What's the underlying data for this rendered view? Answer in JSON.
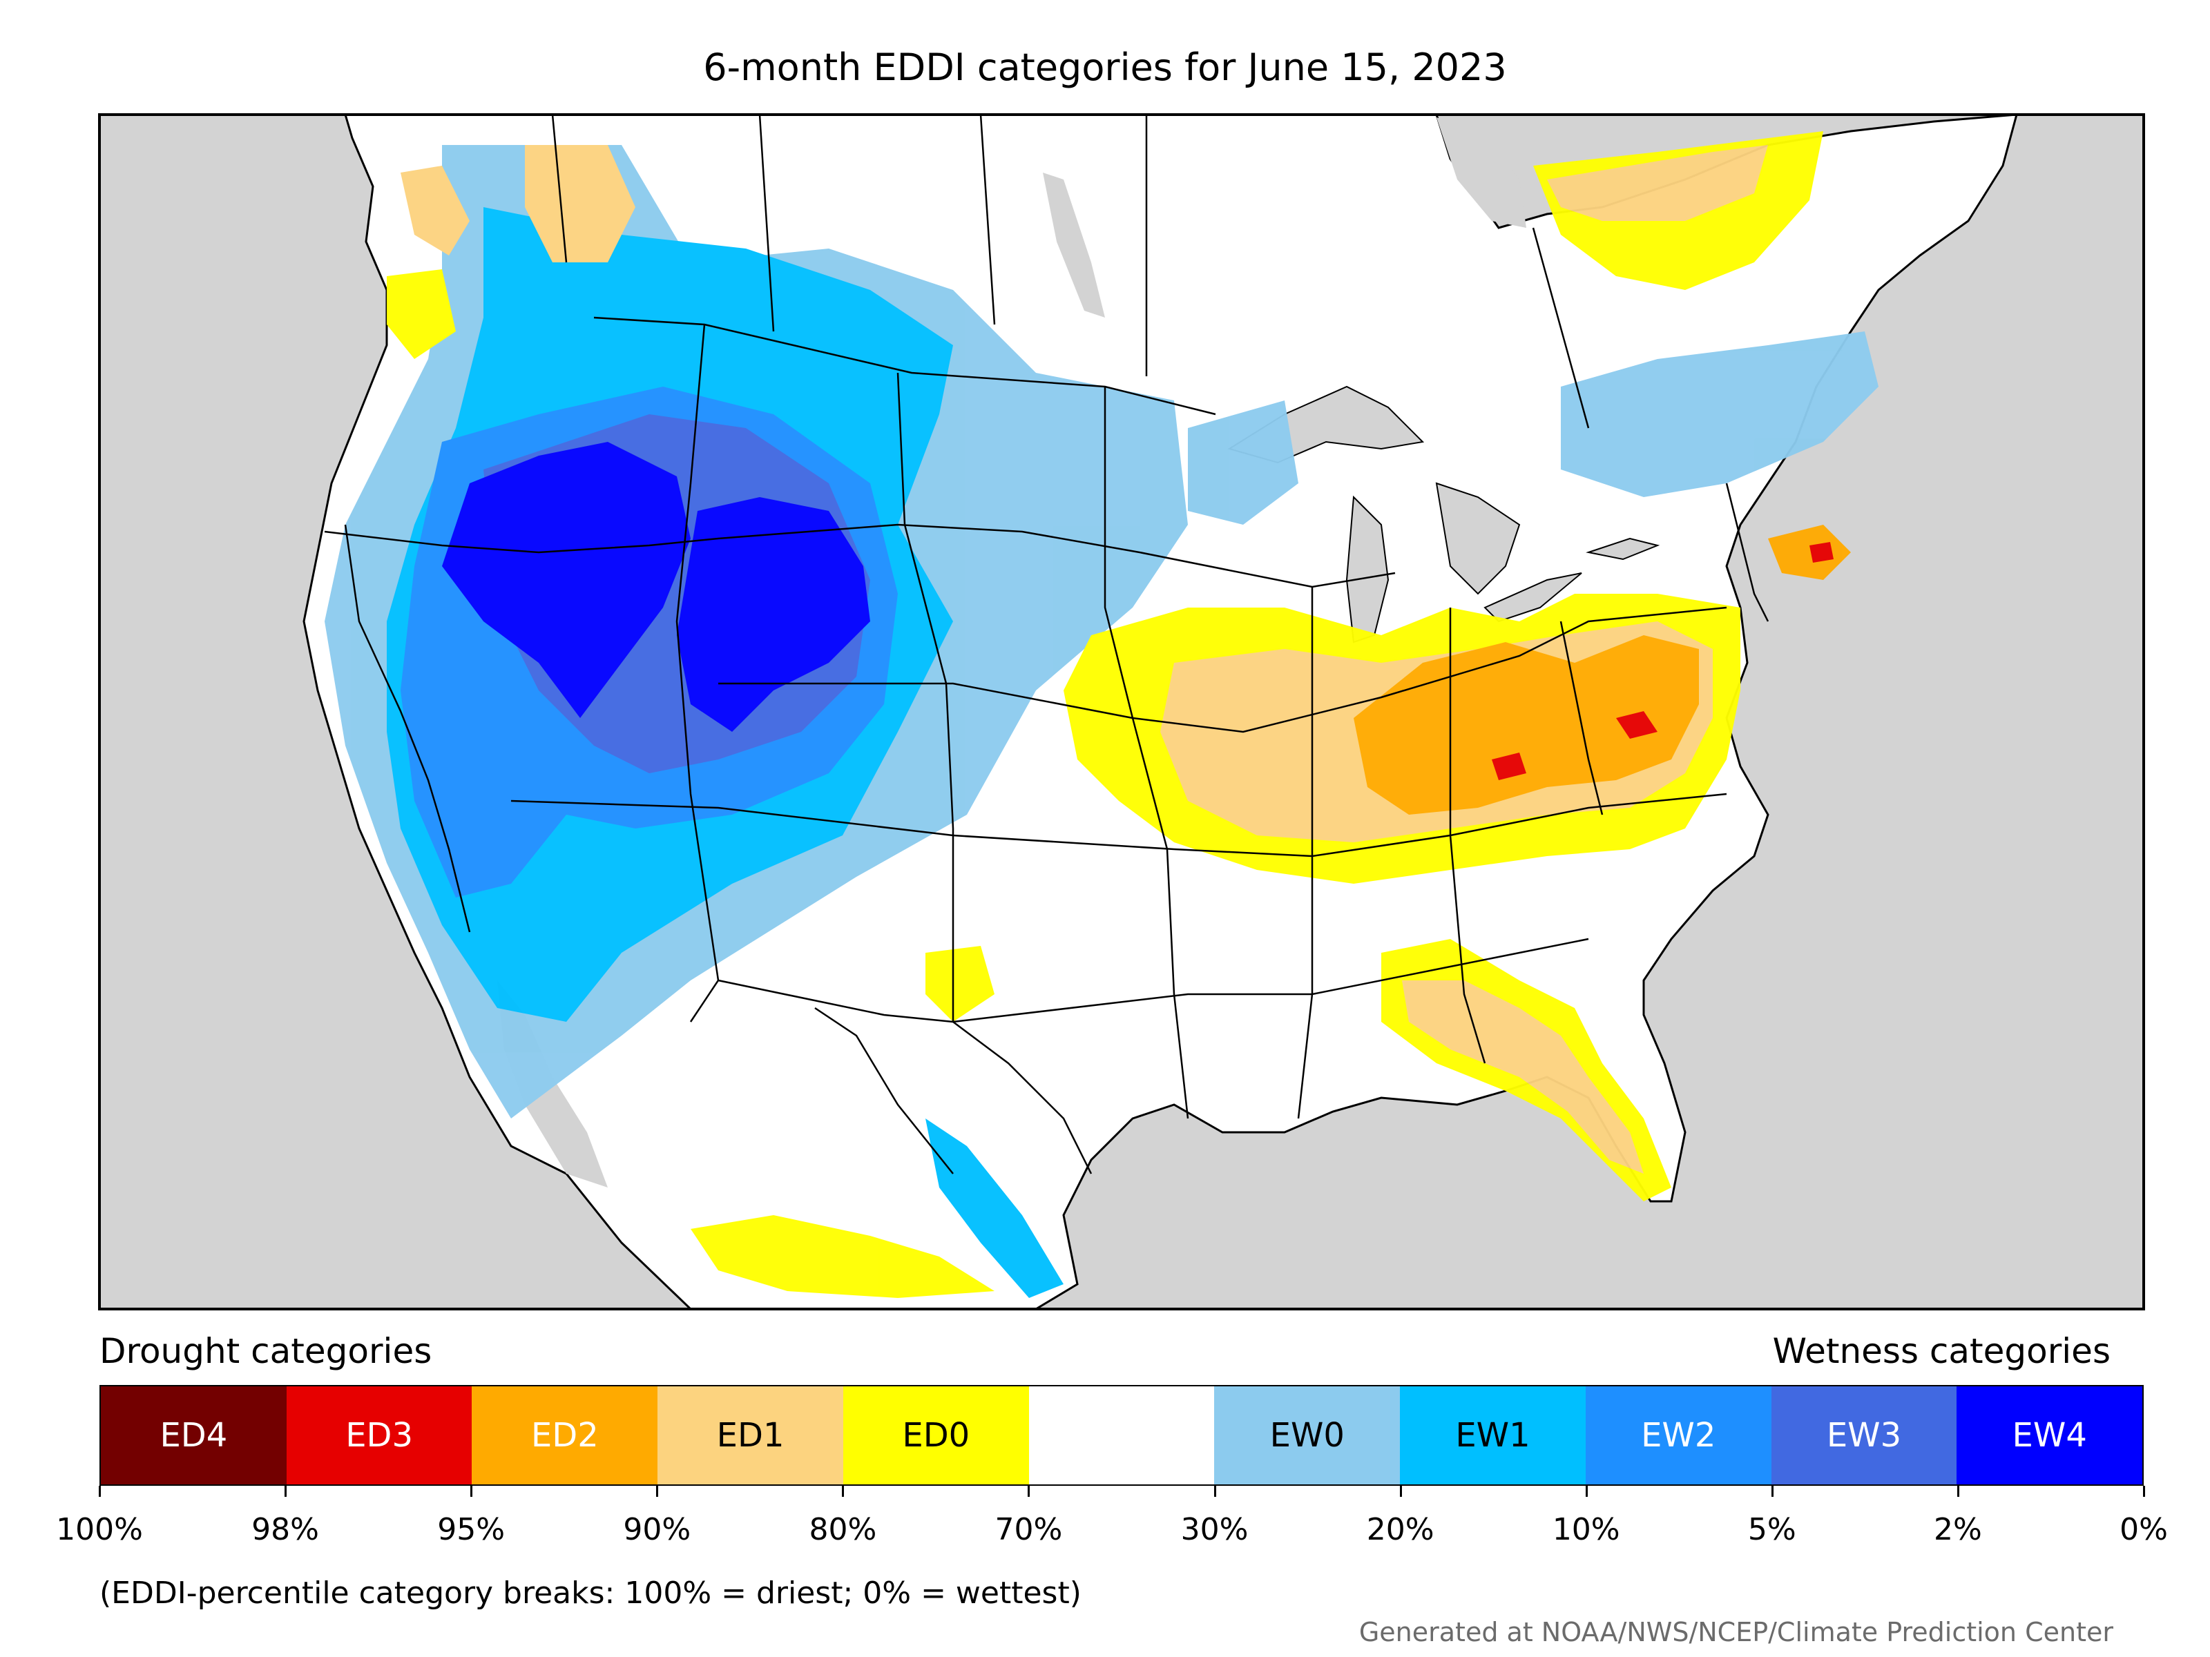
{
  "title": "6-month EDDI categories for June 15, 2023",
  "legend": {
    "drought_heading": "Drought categories",
    "wetness_heading": "Wetness categories",
    "categories": [
      {
        "label": "ED4",
        "color": "#730000",
        "text_color": "#ffffff"
      },
      {
        "label": "ED3",
        "color": "#e60000",
        "text_color": "#ffffff"
      },
      {
        "label": "ED2",
        "color": "#ffaa00",
        "text_color": "#ffffff"
      },
      {
        "label": "ED1",
        "color": "#fcd37f",
        "text_color": "#000000"
      },
      {
        "label": "ED0",
        "color": "#ffff00",
        "text_color": "#000000"
      },
      {
        "label": "",
        "color": "#ffffff",
        "text_color": "#000000"
      },
      {
        "label": "EW0",
        "color": "#8ccbee",
        "text_color": "#000000"
      },
      {
        "label": "EW1",
        "color": "#00bfff",
        "text_color": "#000000"
      },
      {
        "label": "EW2",
        "color": "#1e8fff",
        "text_color": "#ffffff"
      },
      {
        "label": "EW3",
        "color": "#4169e1",
        "text_color": "#ffffff"
      },
      {
        "label": "EW4",
        "color": "#0000ff",
        "text_color": "#ffffff"
      }
    ],
    "ticks": [
      "100%",
      "98%",
      "95%",
      "90%",
      "80%",
      "70%",
      "30%",
      "20%",
      "10%",
      "5%",
      "2%",
      "0%"
    ],
    "note": "(EDDI-percentile category breaks: 100% = driest; 0% = wettest)"
  },
  "credit": "Generated at NOAA/NWS/NCEP/Climate Prediction Center",
  "map": {
    "background_color": "#d3d3d3",
    "land_color": "#ffffff",
    "boundary_color": "#000000",
    "regions": [
      {
        "name": "great-basin-wet-core",
        "category": "EW4"
      },
      {
        "name": "wyoming-wet-core",
        "category": "EW4"
      },
      {
        "name": "ohio-valley-drought",
        "category": "ED2"
      },
      {
        "name": "midwest-drought",
        "category": "ED1"
      },
      {
        "name": "mid-atlantic-drought",
        "category": "ED1"
      },
      {
        "name": "florida-drought",
        "category": "ED1"
      },
      {
        "name": "quebec-dry",
        "category": "ED0"
      }
    ]
  }
}
